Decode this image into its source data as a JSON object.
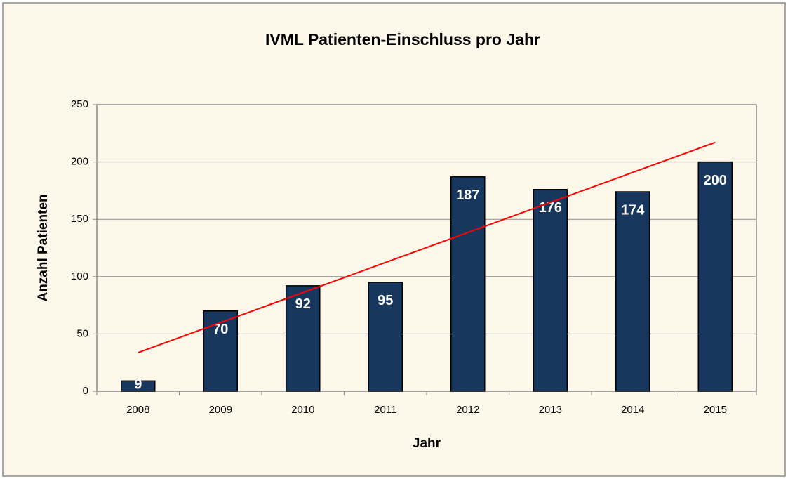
{
  "chart_data": {
    "type": "bar",
    "title": "IVML Patienten-Einschluss pro Jahr",
    "x_label": "Jahr",
    "y_label": "Anzahl Patienten",
    "categories": [
      "2008",
      "2009",
      "2010",
      "2011",
      "2012",
      "2013",
      "2014",
      "2015"
    ],
    "values": [
      9,
      70,
      92,
      95,
      187,
      176,
      174,
      200
    ],
    "color": "#17375e",
    "trendline": "linear",
    "trendline_color": "#ff0000",
    "ylim": [
      0,
      250
    ],
    "yticks": [
      0,
      50,
      100,
      150,
      200,
      250
    ],
    "grid": true
  }
}
